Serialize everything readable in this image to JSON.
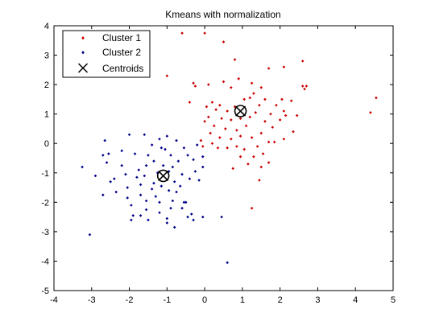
{
  "chart_data": {
    "type": "scatter",
    "title": "Kmeans with normalization",
    "xlabel": "",
    "ylabel": "",
    "xlim": [
      -4,
      5
    ],
    "ylim": [
      -5,
      4
    ],
    "xticks": [
      -4,
      -3,
      -2,
      -1,
      0,
      1,
      2,
      3,
      4,
      5
    ],
    "yticks": [
      -5,
      -4,
      -3,
      -2,
      -1,
      0,
      1,
      2,
      3,
      4
    ],
    "grid": false,
    "legend_position": "top-left",
    "series": [
      {
        "name": "Cluster 1",
        "color": "#cc0000",
        "marker": "dot",
        "points": [
          [
            -0.6,
            3.75
          ],
          [
            0.0,
            3.75
          ],
          [
            0.5,
            3.45
          ],
          [
            -1.0,
            2.3
          ],
          [
            0.8,
            2.85
          ],
          [
            1.7,
            2.55
          ],
          [
            2.1,
            2.6
          ],
          [
            2.6,
            2.8
          ],
          [
            2.7,
            1.95
          ],
          [
            2.65,
            1.85
          ],
          [
            2.6,
            1.95
          ],
          [
            -0.3,
            2.05
          ],
          [
            -0.25,
            1.95
          ],
          [
            0.1,
            2.0
          ],
          [
            0.5,
            2.1
          ],
          [
            0.9,
            2.2
          ],
          [
            1.25,
            2.05
          ],
          [
            1.5,
            1.9
          ],
          [
            1.6,
            1.5
          ],
          [
            1.3,
            1.7
          ],
          [
            1.2,
            1.55
          ],
          [
            0.7,
            1.9
          ],
          [
            -0.4,
            1.4
          ],
          [
            0.2,
            1.4
          ],
          [
            0.4,
            1.3
          ],
          [
            0.05,
            1.25
          ],
          [
            0.3,
            1.15
          ],
          [
            0.6,
            1.1
          ],
          [
            0.8,
            1.25
          ],
          [
            1.05,
            1.5
          ],
          [
            1.45,
            1.3
          ],
          [
            2.05,
            1.5
          ],
          [
            2.3,
            1.45
          ],
          [
            2.45,
            0.95
          ],
          [
            2.1,
            1.1
          ],
          [
            1.9,
            1.3
          ],
          [
            1.75,
            1.0
          ],
          [
            1.6,
            0.75
          ],
          [
            1.35,
            1.05
          ],
          [
            1.2,
            0.9
          ],
          [
            0.95,
            0.85
          ],
          [
            0.7,
            0.8
          ],
          [
            0.45,
            0.85
          ],
          [
            0.1,
            0.9
          ],
          [
            0.0,
            0.75
          ],
          [
            0.25,
            0.6
          ],
          [
            0.55,
            0.5
          ],
          [
            0.85,
            0.45
          ],
          [
            1.1,
            0.6
          ],
          [
            1.5,
            0.35
          ],
          [
            1.8,
            0.55
          ],
          [
            2.0,
            0.8
          ],
          [
            2.35,
            0.4
          ],
          [
            0.15,
            0.35
          ],
          [
            0.4,
            0.2
          ],
          [
            0.7,
            0.15
          ],
          [
            0.95,
            0.25
          ],
          [
            1.25,
            0.2
          ],
          [
            1.4,
            -0.1
          ],
          [
            1.7,
            0.05
          ],
          [
            2.1,
            0.15
          ],
          [
            0.6,
            -0.15
          ],
          [
            0.85,
            -0.1
          ],
          [
            1.05,
            -0.2
          ],
          [
            1.3,
            -0.45
          ],
          [
            1.55,
            -0.35
          ],
          [
            1.7,
            -0.65
          ],
          [
            1.5,
            -0.8
          ],
          [
            1.45,
            -1.25
          ],
          [
            0.75,
            -0.85
          ],
          [
            0.35,
            -0.15
          ],
          [
            -0.1,
            0.1
          ],
          [
            -0.05,
            -0.1
          ],
          [
            0.2,
            0.0
          ],
          [
            4.55,
            1.55
          ],
          [
            4.4,
            1.05
          ],
          [
            1.25,
            -2.2
          ],
          [
            2.15,
            0.95
          ],
          [
            1.85,
            0.05
          ],
          [
            1.15,
            -0.7
          ],
          [
            0.95,
            -0.45
          ]
        ]
      },
      {
        "name": "Cluster 2",
        "color": "#00008b",
        "marker": "dot",
        "points": [
          [
            -3.05,
            -3.1
          ],
          [
            -3.25,
            -0.8
          ],
          [
            -2.9,
            -1.1
          ],
          [
            -2.7,
            -0.4
          ],
          [
            -2.55,
            -0.35
          ],
          [
            -2.6,
            -0.65
          ],
          [
            -2.65,
            0.1
          ],
          [
            -2.5,
            -1.3
          ],
          [
            -2.4,
            -1.2
          ],
          [
            -2.35,
            -1.65
          ],
          [
            -2.7,
            -1.75
          ],
          [
            -2.2,
            -0.75
          ],
          [
            -2.1,
            -1.05
          ],
          [
            -2.05,
            -1.5
          ],
          [
            -2.05,
            -1.85
          ],
          [
            -1.95,
            -2.1
          ],
          [
            -1.9,
            -2.45
          ],
          [
            -1.95,
            -2.6
          ],
          [
            -1.7,
            -2.45
          ],
          [
            -1.5,
            -2.6
          ],
          [
            -1.55,
            -2.25
          ],
          [
            -1.55,
            -1.95
          ],
          [
            -1.7,
            -1.75
          ],
          [
            -1.7,
            -1.4
          ],
          [
            -1.6,
            -1.1
          ],
          [
            -1.55,
            -0.75
          ],
          [
            -1.85,
            -0.35
          ],
          [
            -1.5,
            -0.4
          ],
          [
            -1.35,
            -0.6
          ],
          [
            -1.15,
            -0.15
          ],
          [
            -1.2,
            0.15
          ],
          [
            -1.05,
            -0.2
          ],
          [
            -0.9,
            -0.4
          ],
          [
            -0.85,
            -0.8
          ],
          [
            -0.8,
            -1.3
          ],
          [
            -0.75,
            -1.65
          ],
          [
            -0.85,
            -1.95
          ],
          [
            -0.9,
            -2.2
          ],
          [
            -1.0,
            -2.55
          ],
          [
            -1.2,
            -2.35
          ],
          [
            -1.2,
            -2.0
          ],
          [
            -1.3,
            -1.8
          ],
          [
            -1.35,
            -1.35
          ],
          [
            -1.25,
            -1.0
          ],
          [
            -1.1,
            -0.75
          ],
          [
            -0.95,
            -0.95
          ],
          [
            -0.7,
            -0.6
          ],
          [
            -0.55,
            -0.15
          ],
          [
            -0.45,
            -0.4
          ],
          [
            -0.6,
            -1.05
          ],
          [
            -0.65,
            -1.45
          ],
          [
            -0.5,
            -2.0
          ],
          [
            -0.35,
            -2.4
          ],
          [
            -0.3,
            -2.6
          ],
          [
            -0.45,
            -2.5
          ],
          [
            -0.6,
            -2.2
          ],
          [
            -0.8,
            -2.85
          ],
          [
            -1.0,
            -2.7
          ],
          [
            -0.3,
            -0.55
          ],
          [
            -0.25,
            -0.95
          ],
          [
            -0.15,
            -1.25
          ],
          [
            -0.05,
            -0.8
          ],
          [
            -0.05,
            -0.45
          ],
          [
            -0.2,
            -0.05
          ],
          [
            -1.4,
            -0.05
          ],
          [
            -1.6,
            0.3
          ],
          [
            -1.0,
            0.25
          ],
          [
            -0.75,
            0.1
          ],
          [
            -2.0,
            0.3
          ],
          [
            -2.2,
            -0.25
          ],
          [
            -1.8,
            -1.15
          ],
          [
            -1.4,
            -1.55
          ],
          [
            -1.15,
            -1.45
          ],
          [
            -0.95,
            -1.6
          ],
          [
            -0.05,
            -2.5
          ],
          [
            0.45,
            -2.5
          ],
          [
            0.6,
            -4.05
          ],
          [
            -0.55,
            -2.0
          ],
          [
            -1.75,
            -0.9
          ],
          [
            -0.4,
            -1.2
          ]
        ]
      }
    ],
    "centroids": {
      "name": "Centroids",
      "color": "#000000",
      "marker": "x-circle",
      "points": [
        [
          0.95,
          1.1
        ],
        [
          -1.1,
          -1.1
        ]
      ]
    }
  }
}
